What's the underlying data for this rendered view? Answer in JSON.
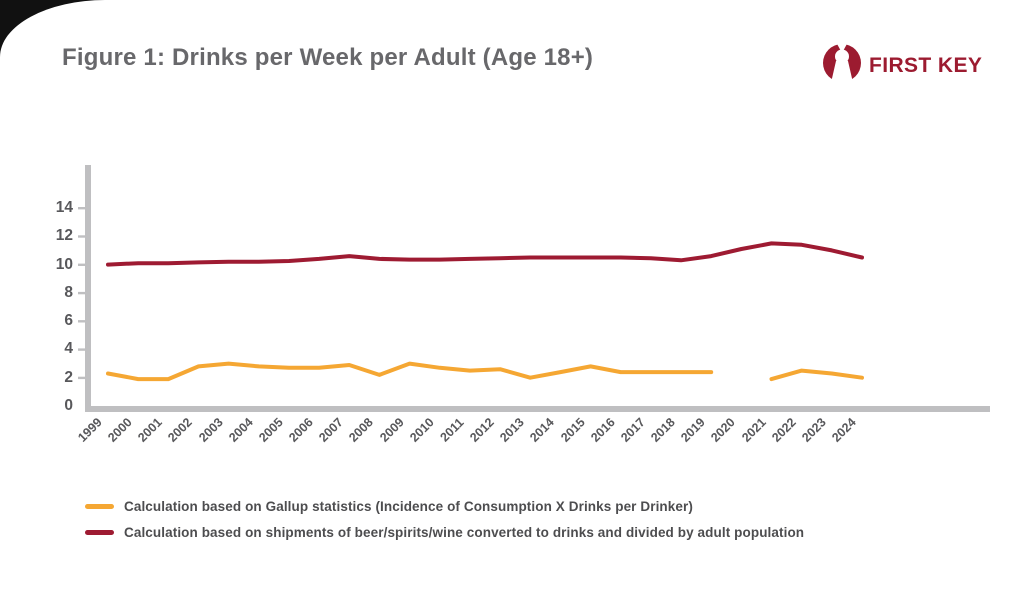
{
  "header": {
    "title": "Figure 1: Drinks per Week per Adult (Age 18+)",
    "logo_text": "FIRST KEY"
  },
  "colors": {
    "gallup_line": "#F5A733",
    "shipments_line": "#9E1B32",
    "brand_red": "#9C1B30",
    "axis_gray": "#BFBFC1",
    "tick_label_gray": "#58585B",
    "title_gray": "#68686B",
    "legend_text_gray": "#4D4D4F"
  },
  "chart_data": {
    "type": "line",
    "title": "Figure 1: Drinks per Week per Adult (Age 18+)",
    "xlabel": "",
    "ylabel": "",
    "x": [
      1999,
      2000,
      2001,
      2002,
      2003,
      2004,
      2005,
      2006,
      2007,
      2008,
      2009,
      2010,
      2011,
      2012,
      2013,
      2014,
      2015,
      2016,
      2017,
      2018,
      2019,
      2020,
      2021,
      2022,
      2023,
      2024
    ],
    "yticks": [
      0,
      2,
      4,
      6,
      8,
      10,
      12,
      14
    ],
    "ylim": [
      0,
      14
    ],
    "grid": false,
    "legend_position": "bottom-left",
    "series": [
      {
        "name": "Calculation based on Gallup statistics (Incidence of Consumption X Drinks per Drinker)",
        "color": "#F5A733",
        "values": [
          2.3,
          1.9,
          1.9,
          2.8,
          3.0,
          2.8,
          2.7,
          2.7,
          2.9,
          2.2,
          3.0,
          2.7,
          2.5,
          2.6,
          2.0,
          2.4,
          2.8,
          2.4,
          2.4,
          2.4,
          2.4,
          null,
          1.9,
          2.5,
          2.3,
          2.0
        ]
      },
      {
        "name": "Calculation based on shipments of beer/spirits/wine converted to drinks and divided by adult population",
        "color": "#9E1B32",
        "values": [
          10.0,
          10.1,
          10.1,
          10.15,
          10.2,
          10.2,
          10.25,
          10.4,
          10.6,
          10.4,
          10.35,
          10.35,
          10.4,
          10.45,
          10.5,
          10.5,
          10.5,
          10.5,
          10.45,
          10.3,
          10.6,
          11.1,
          11.5,
          11.4,
          11.0,
          10.5
        ]
      }
    ]
  },
  "legend": {
    "items": [
      {
        "label": "Calculation based on Gallup statistics (Incidence of Consumption X Drinks per Drinker)",
        "color": "#F5A733"
      },
      {
        "label": "Calculation based on shipments of beer/spirits/wine converted to drinks and divided by adult population",
        "color": "#9E1B32"
      }
    ]
  }
}
